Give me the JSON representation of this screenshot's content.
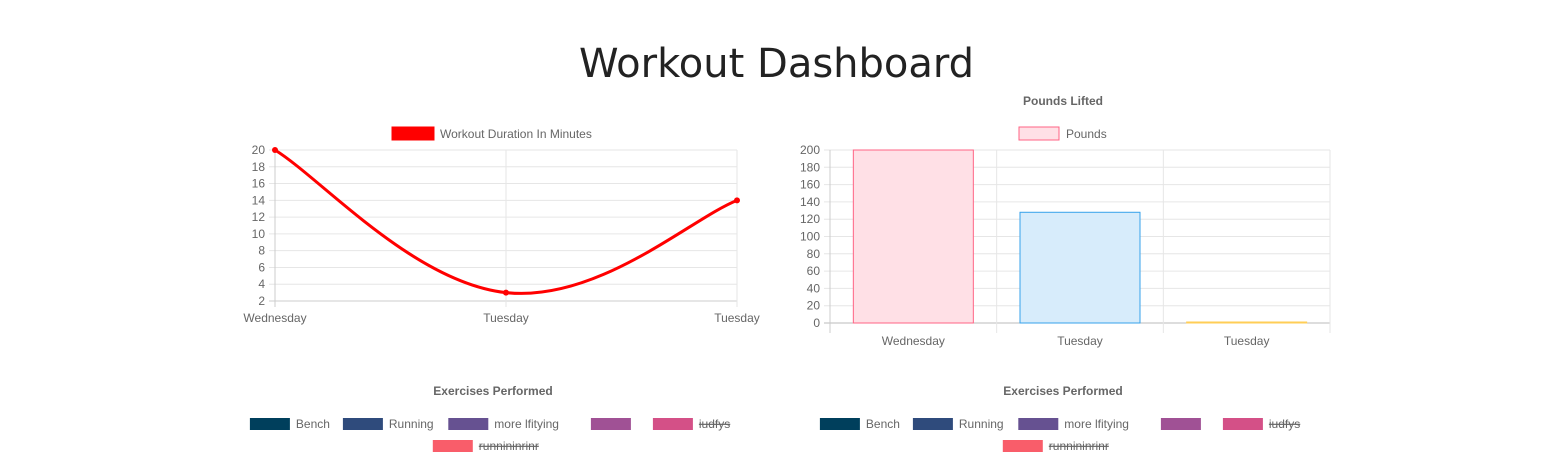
{
  "page": {
    "title": "Workout Dashboard"
  },
  "chart_data": [
    {
      "type": "line",
      "title": "",
      "categories": [
        "Wednesday",
        "Tuesday",
        "Tuesday"
      ],
      "series": [
        {
          "name": "Workout Duration In Minutes",
          "values": [
            20,
            3,
            14
          ],
          "color": "#ff0000"
        }
      ],
      "ylim": [
        2,
        20
      ],
      "yticks": [
        20,
        18,
        16,
        14,
        12,
        10,
        8,
        6,
        4,
        2
      ],
      "grid": true,
      "legend": "top"
    },
    {
      "type": "bar",
      "title": "Pounds Lifted",
      "categories": [
        "Wednesday",
        "Tuesday",
        "Tuesday"
      ],
      "series": [
        {
          "name": "Pounds",
          "values": [
            200,
            128,
            0
          ]
        }
      ],
      "bar_colors": [
        "#ff6384",
        "#36a2eb",
        "#ffce56"
      ],
      "bar_fills": [
        "#ffe0e6",
        "#d7ecfb",
        "#fff5dd"
      ],
      "ylim": [
        0,
        200
      ],
      "yticks": [
        200,
        180,
        160,
        140,
        120,
        100,
        80,
        60,
        40,
        20,
        0
      ],
      "grid": true,
      "legend": "top"
    },
    {
      "type": "pie",
      "title": "Exercises Performed",
      "legend_items": [
        {
          "label": "Bench",
          "color": "#003f5c",
          "hidden": false
        },
        {
          "label": "Running",
          "color": "#2f4b7c",
          "hidden": false
        },
        {
          "label": "more lfitying",
          "color": "#665191",
          "hidden": false
        },
        {
          "label": "",
          "color": "#a05195",
          "hidden": false
        },
        {
          "label": "iudfys",
          "color": "#d45087",
          "hidden": true
        },
        {
          "label": "runnininrinr",
          "color": "#f95d6a",
          "hidden": true
        }
      ],
      "legend": "top"
    },
    {
      "type": "pie",
      "title": "Exercises Performed",
      "legend_items": [
        {
          "label": "Bench",
          "color": "#003f5c",
          "hidden": false
        },
        {
          "label": "Running",
          "color": "#2f4b7c",
          "hidden": false
        },
        {
          "label": "more lfitying",
          "color": "#665191",
          "hidden": false
        },
        {
          "label": "",
          "color": "#a05195",
          "hidden": false
        },
        {
          "label": "iudfys",
          "color": "#d45087",
          "hidden": true
        },
        {
          "label": "runnininrinr",
          "color": "#f95d6a",
          "hidden": true
        }
      ],
      "legend": "top"
    }
  ]
}
